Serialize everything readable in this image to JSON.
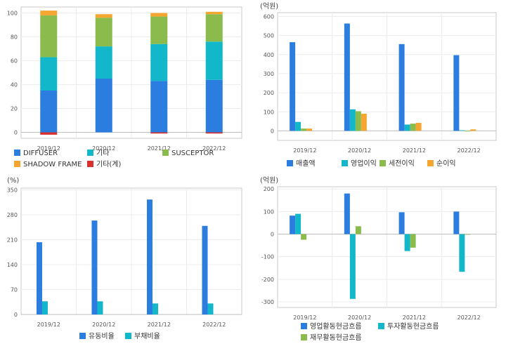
{
  "chart_data": [
    {
      "id": "c1",
      "type": "bar",
      "stacked": true,
      "categories": [
        "2019/12",
        "2020/12",
        "2021/12",
        "2022/12"
      ],
      "ylim": [
        -5,
        105
      ],
      "yticks": [
        0,
        20,
        40,
        60,
        80,
        100
      ],
      "unit": "",
      "legend_position": "bottom",
      "series": [
        {
          "name": "DIFFUSER",
          "color": "#2b7de0",
          "values": [
            35,
            45,
            43,
            44
          ]
        },
        {
          "name": "기타",
          "color": "#12b8c9",
          "values": [
            28,
            27,
            31,
            32
          ]
        },
        {
          "name": "SUSCEPTOR",
          "color": "#8bbb4c",
          "values": [
            35,
            24,
            23,
            23
          ]
        },
        {
          "name": "SHADOW FRAME",
          "color": "#f5a631",
          "values": [
            4,
            3,
            3,
            2
          ]
        },
        {
          "name": "기타(계)",
          "color": "#d8312d",
          "values": [
            -2,
            0,
            -1,
            -1
          ]
        }
      ]
    },
    {
      "id": "c2",
      "type": "bar",
      "categories": [
        "2019/12",
        "2020/12",
        "2021/12",
        "2022/12"
      ],
      "ylim": [
        -50,
        620
      ],
      "yticks": [
        0,
        100,
        200,
        300,
        400,
        500,
        600
      ],
      "unit": "(억원)",
      "legend_position": "bottom",
      "series": [
        {
          "name": "매출액",
          "color": "#2b7de0",
          "values": [
            465,
            563,
            455,
            397
          ]
        },
        {
          "name": "영업이익",
          "color": "#12b8c9",
          "values": [
            47,
            113,
            33,
            3
          ]
        },
        {
          "name": "세전이익",
          "color": "#8bbb4c",
          "values": [
            12,
            103,
            38,
            0
          ]
        },
        {
          "name": "순이익",
          "color": "#f5a631",
          "values": [
            12,
            90,
            42,
            8
          ]
        }
      ]
    },
    {
      "id": "c3",
      "type": "bar",
      "categories": [
        "2019/12",
        "2020/12",
        "2021/12",
        "2022/12"
      ],
      "ylim": [
        0,
        355
      ],
      "yticks": [
        0,
        70,
        140,
        210,
        280,
        350
      ],
      "unit": "(%)",
      "legend_position": "bottom",
      "series": [
        {
          "name": "유동비율",
          "color": "#2b7de0",
          "values": [
            203,
            264,
            323,
            249
          ]
        },
        {
          "name": "부채비율",
          "color": "#12b8c9",
          "values": [
            37,
            37,
            31,
            31
          ]
        }
      ]
    },
    {
      "id": "c4",
      "type": "bar",
      "categories": [
        "2019/12",
        "2020/12",
        "2021/12",
        "2022/12"
      ],
      "ylim": [
        -325,
        210
      ],
      "yticks": [
        -300,
        -200,
        -100,
        0,
        100,
        200
      ],
      "unit": "(억원)",
      "legend_position": "bottom",
      "series": [
        {
          "name": "영업활동현금흐름",
          "color": "#2b7de0",
          "values": [
            82,
            180,
            97,
            100
          ]
        },
        {
          "name": "투자활동현금흐름",
          "color": "#12b8c9",
          "values": [
            90,
            -287,
            -75,
            -167
          ]
        },
        {
          "name": "재무활동현금흐름",
          "color": "#8bbb4c",
          "values": [
            -25,
            35,
            -60,
            0
          ]
        }
      ]
    }
  ]
}
